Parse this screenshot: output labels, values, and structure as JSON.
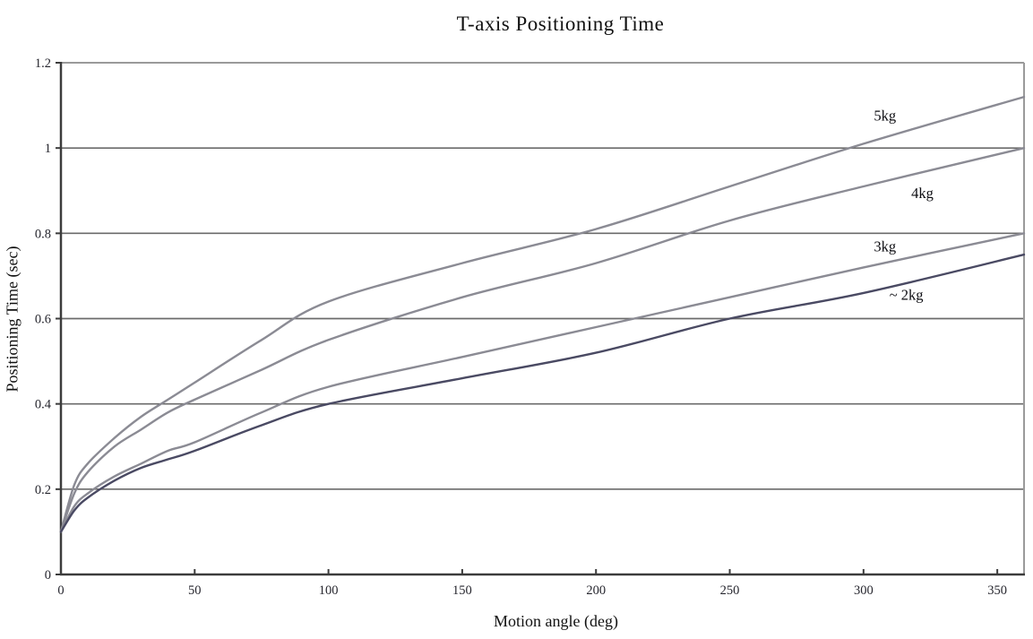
{
  "chart_data": {
    "type": "line",
    "title": "T-axis Positioning Time",
    "xlabel": "Motion angle (deg)",
    "ylabel": "Positioning Time (sec)",
    "xlim": [
      0,
      360
    ],
    "ylim": [
      0,
      1.2
    ],
    "x_ticks": [
      0,
      50,
      100,
      150,
      200,
      250,
      300,
      350
    ],
    "y_ticks": [
      0,
      0.2,
      0.4,
      0.6,
      0.8,
      1,
      1.2
    ],
    "y_tick_labels": [
      "0",
      "0.2",
      "0.4",
      "0.6",
      "0.8",
      "1",
      "1.2"
    ],
    "grid": "horizontal-only",
    "legend": "inline-curve-labels",
    "colors": {
      "grid": "#6b6b6b",
      "axis": "#3c3c3c",
      "border": "#9a9a9a",
      "gray_series": "#8b8b94",
      "dark_series": "#4a4a63"
    },
    "x": [
      0,
      5,
      10,
      20,
      30,
      40,
      50,
      75,
      100,
      150,
      200,
      250,
      300,
      360
    ],
    "series": [
      {
        "name": "5kg",
        "label": "5kg",
        "color": "#8b8b94",
        "label_anchor": {
          "x": 308,
          "y": 1.075
        },
        "y": [
          0.1,
          0.21,
          0.26,
          0.32,
          0.37,
          0.41,
          0.45,
          0.55,
          0.64,
          0.73,
          0.81,
          0.91,
          1.01,
          1.12
        ]
      },
      {
        "name": "4kg",
        "label": "4kg",
        "color": "#8b8b94",
        "label_anchor": {
          "x": 322,
          "y": 0.893
        },
        "y": [
          0.1,
          0.19,
          0.24,
          0.3,
          0.34,
          0.38,
          0.41,
          0.48,
          0.55,
          0.65,
          0.73,
          0.83,
          0.91,
          1.0
        ]
      },
      {
        "name": "3kg",
        "label": "3kg",
        "color": "#8b8b94",
        "label_anchor": {
          "x": 308,
          "y": 0.768
        },
        "y": [
          0.1,
          0.16,
          0.19,
          0.23,
          0.26,
          0.29,
          0.31,
          0.38,
          0.44,
          0.51,
          0.58,
          0.65,
          0.72,
          0.8
        ]
      },
      {
        "name": "2kg",
        "label": "~ 2kg",
        "color": "#4a4a63",
        "label_anchor": {
          "x": 316,
          "y": 0.655
        },
        "y": [
          0.1,
          0.15,
          0.18,
          0.22,
          0.25,
          0.27,
          0.29,
          0.35,
          0.4,
          0.46,
          0.52,
          0.6,
          0.66,
          0.75
        ]
      }
    ]
  }
}
